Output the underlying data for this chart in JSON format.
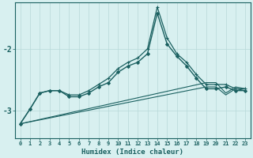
{
  "xlabel": "Humidex (Indice chaleur)",
  "background_color": "#d8f0f0",
  "grid_color": "#b8d8d8",
  "line_color": "#1a6060",
  "xlim": [
    -0.5,
    23.5
  ],
  "ylim": [
    -3.45,
    -1.25
  ],
  "yticks": [
    -3,
    -2
  ],
  "xticks": [
    0,
    1,
    2,
    3,
    4,
    5,
    6,
    7,
    8,
    9,
    10,
    11,
    12,
    13,
    14,
    15,
    16,
    17,
    18,
    19,
    20,
    21,
    22,
    23
  ],
  "series": [
    {
      "x": [
        0,
        1,
        2,
        3,
        4,
        5,
        6,
        7,
        8,
        9,
        10,
        11,
        12,
        13,
        14,
        15,
        16,
        17,
        18,
        19,
        20,
        21,
        22,
        23
      ],
      "y": [
        -3.22,
        -2.98,
        -2.72,
        -2.68,
        -2.68,
        -2.78,
        -2.78,
        -2.72,
        -2.62,
        -2.55,
        -2.38,
        -2.28,
        -2.22,
        -2.08,
        -1.42,
        -1.92,
        -2.12,
        -2.28,
        -2.48,
        -2.65,
        -2.65,
        -2.62,
        -2.68,
        -2.68
      ],
      "marker": "D",
      "markersize": 2.0,
      "linewidth": 1.0
    },
    {
      "x": [
        0,
        1,
        2,
        3,
        4,
        5,
        6,
        7,
        8,
        9,
        10,
        11,
        12,
        13,
        14,
        15,
        16,
        17,
        18,
        19,
        20,
        21,
        22,
        23
      ],
      "y": [
        -3.22,
        -2.98,
        -2.72,
        -2.68,
        -2.68,
        -2.75,
        -2.75,
        -2.68,
        -2.58,
        -2.48,
        -2.32,
        -2.22,
        -2.15,
        -2.0,
        -1.32,
        -1.82,
        -2.08,
        -2.22,
        -2.42,
        -2.58,
        -2.58,
        -2.58,
        -2.65,
        -2.65
      ],
      "marker": "+",
      "markersize": 3.5,
      "linewidth": 0.9
    },
    {
      "x": [
        0,
        19,
        20,
        21,
        22,
        23
      ],
      "y": [
        -3.22,
        -2.62,
        -2.62,
        -2.75,
        -2.65,
        -2.68
      ],
      "marker": null,
      "linewidth": 0.8
    },
    {
      "x": [
        0,
        19,
        20,
        21,
        22,
        23
      ],
      "y": [
        -3.22,
        -2.55,
        -2.55,
        -2.72,
        -2.62,
        -2.65
      ],
      "marker": null,
      "linewidth": 0.8
    }
  ]
}
